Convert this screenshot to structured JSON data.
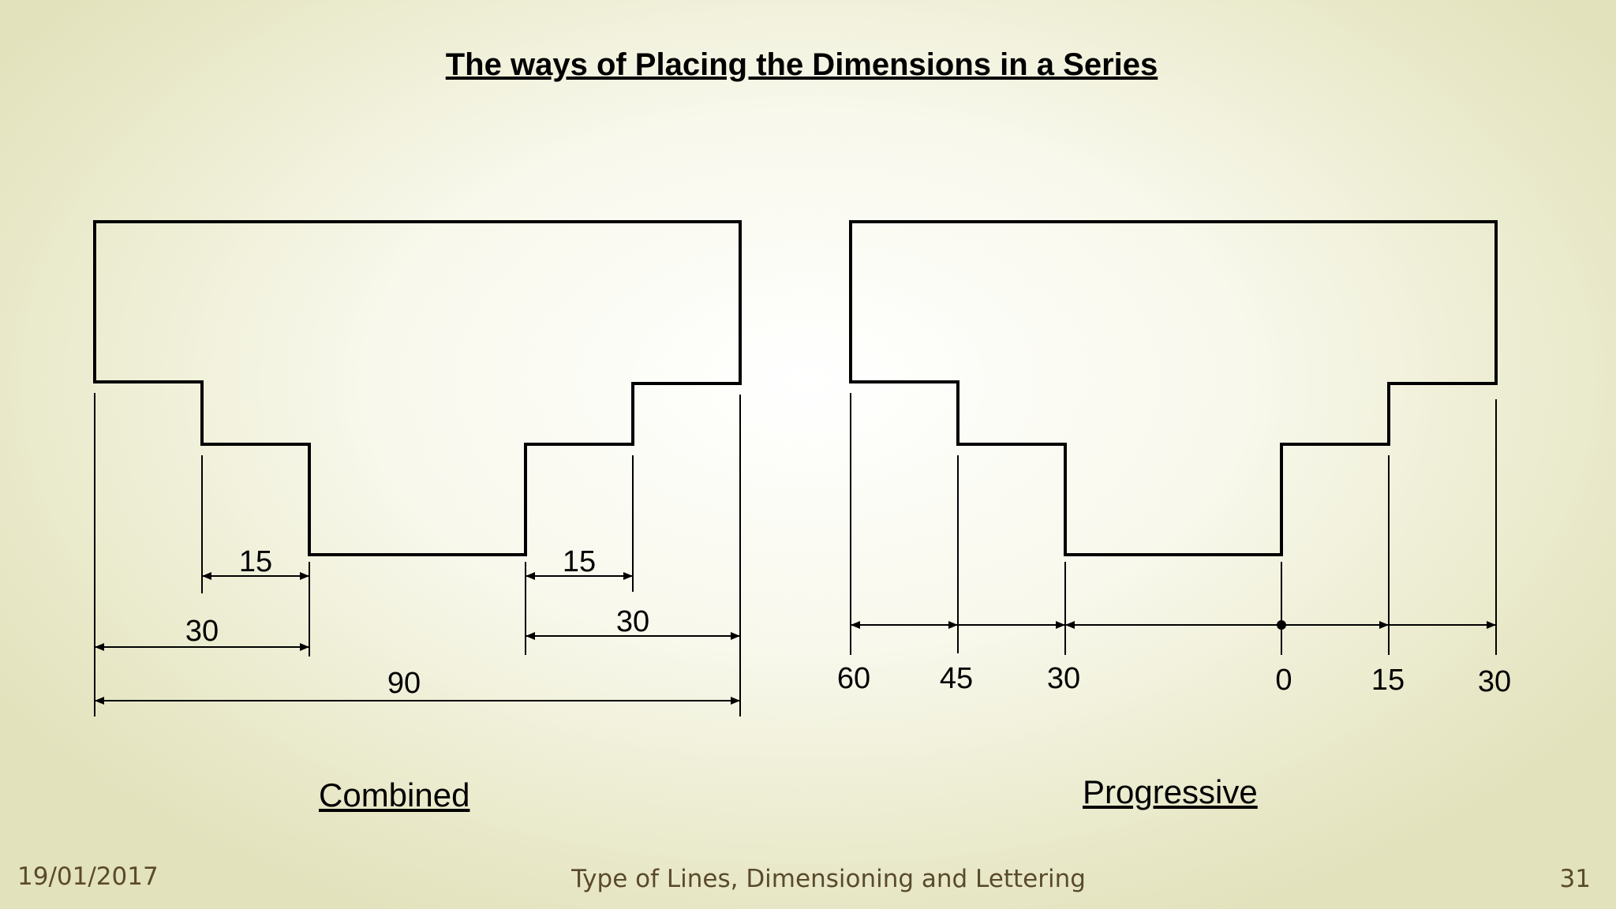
{
  "title": "The ways of Placing the Dimensions in a Series",
  "combined": {
    "caption": "Combined",
    "dims": {
      "step_left": "15",
      "step_right": "15",
      "left_total": "30",
      "right_total": "30",
      "overall": "90"
    }
  },
  "progressive": {
    "caption": "Progressive",
    "labels": [
      "60",
      "45",
      "30",
      "0",
      "15",
      "30"
    ]
  },
  "footer": {
    "date": "19/01/2017",
    "subject": "Type of Lines, Dimensioning and Lettering",
    "page": "31"
  }
}
